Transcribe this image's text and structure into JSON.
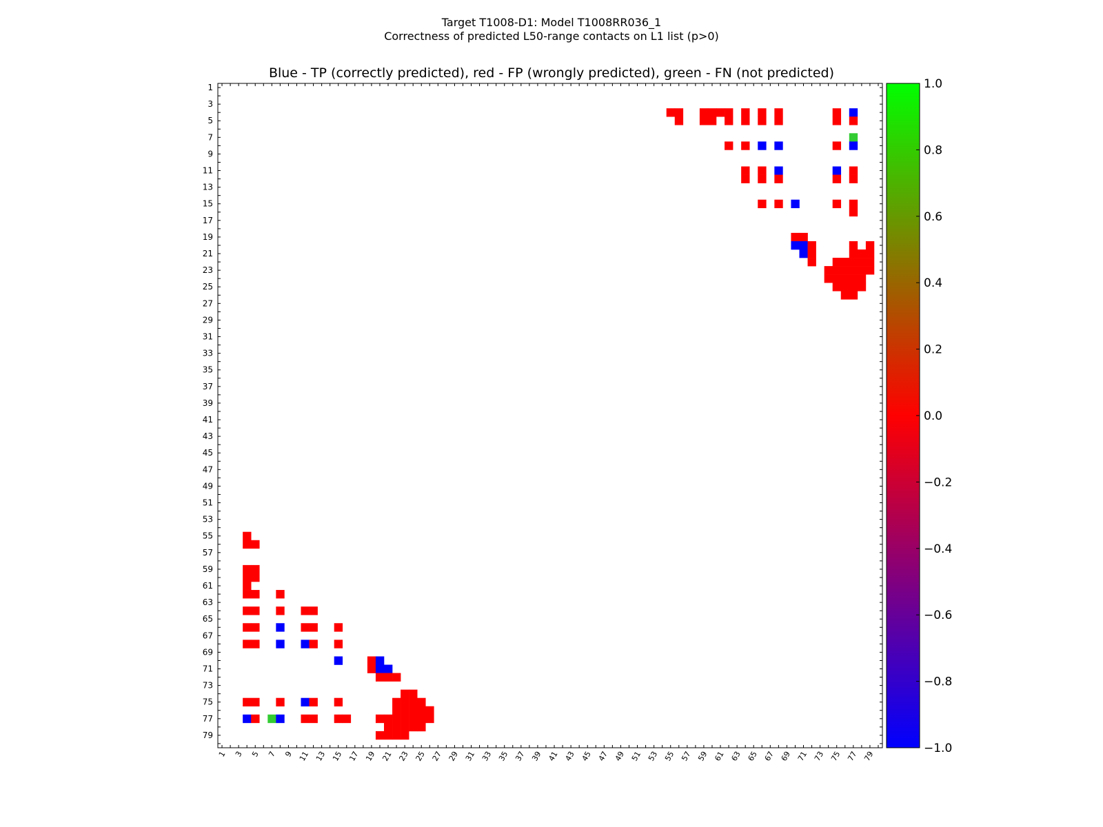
{
  "chart_data": {
    "type": "heatmap",
    "suptitle_line1": "Target T1008-D1: Model T1008RR036_1",
    "suptitle_line2": "Correctness of predicted L50-range contacts on L1 list (p>0)",
    "title": "Blue - TP (correctly predicted), red - FP (wrongly predicted), green - FN (not predicted)",
    "matrix_size": 80,
    "x_tick_labels": [
      "1",
      "3",
      "5",
      "7",
      "9",
      "11",
      "13",
      "15",
      "17",
      "19",
      "21",
      "23",
      "25",
      "27",
      "29",
      "31",
      "33",
      "35",
      "37",
      "39",
      "41",
      "43",
      "45",
      "47",
      "49",
      "51",
      "53",
      "55",
      "57",
      "59",
      "61",
      "63",
      "65",
      "67",
      "69",
      "71",
      "73",
      "75",
      "77",
      "79"
    ],
    "y_tick_labels": [
      "1",
      "3",
      "5",
      "7",
      "9",
      "11",
      "13",
      "15",
      "17",
      "19",
      "21",
      "23",
      "25",
      "27",
      "29",
      "31",
      "33",
      "35",
      "37",
      "39",
      "41",
      "43",
      "45",
      "47",
      "49",
      "51",
      "53",
      "55",
      "57",
      "59",
      "61",
      "63",
      "65",
      "67",
      "69",
      "71",
      "73",
      "75",
      "77",
      "79"
    ],
    "colorbar": {
      "min": -1.0,
      "max": 1.0,
      "tick_labels": [
        "1.0",
        "0.8",
        "0.6",
        "0.4",
        "0.2",
        "0.0",
        "−0.2",
        "−0.4",
        "−0.6",
        "−0.8",
        "−1.0"
      ],
      "stops": [
        "#0000ff",
        "#ff0000",
        "#00ff00"
      ]
    },
    "colors": {
      "TP": "#0000ff",
      "FP": "#ff0000",
      "FN": "#33cc33"
    },
    "cells_upper": [
      [
        4,
        55,
        "FP"
      ],
      [
        4,
        56,
        "FP"
      ],
      [
        5,
        56,
        "FP"
      ],
      [
        4,
        59,
        "FP"
      ],
      [
        4,
        60,
        "FP"
      ],
      [
        4,
        61,
        "FP"
      ],
      [
        4,
        62,
        "FP"
      ],
      [
        5,
        59,
        "FP"
      ],
      [
        5,
        60,
        "FP"
      ],
      [
        5,
        62,
        "FP"
      ],
      [
        4,
        64,
        "FP"
      ],
      [
        5,
        64,
        "FP"
      ],
      [
        4,
        66,
        "FP"
      ],
      [
        5,
        66,
        "FP"
      ],
      [
        4,
        68,
        "FP"
      ],
      [
        5,
        68,
        "FP"
      ],
      [
        4,
        75,
        "FP"
      ],
      [
        5,
        75,
        "FP"
      ],
      [
        4,
        77,
        "TP"
      ],
      [
        5,
        77,
        "FP"
      ],
      [
        7,
        77,
        "FN"
      ],
      [
        8,
        62,
        "FP"
      ],
      [
        8,
        64,
        "FP"
      ],
      [
        8,
        66,
        "TP"
      ],
      [
        8,
        68,
        "TP"
      ],
      [
        8,
        75,
        "FP"
      ],
      [
        8,
        77,
        "TP"
      ],
      [
        11,
        64,
        "FP"
      ],
      [
        12,
        64,
        "FP"
      ],
      [
        11,
        66,
        "FP"
      ],
      [
        12,
        66,
        "FP"
      ],
      [
        11,
        68,
        "TP"
      ],
      [
        12,
        68,
        "FP"
      ],
      [
        11,
        75,
        "TP"
      ],
      [
        12,
        75,
        "FP"
      ],
      [
        11,
        77,
        "FP"
      ],
      [
        12,
        77,
        "FP"
      ],
      [
        15,
        66,
        "FP"
      ],
      [
        15,
        68,
        "FP"
      ],
      [
        15,
        70,
        "TP"
      ],
      [
        15,
        75,
        "FP"
      ],
      [
        15,
        77,
        "FP"
      ],
      [
        16,
        77,
        "FP"
      ],
      [
        19,
        70,
        "FP"
      ],
      [
        19,
        71,
        "FP"
      ],
      [
        20,
        70,
        "TP"
      ],
      [
        20,
        71,
        "TP"
      ],
      [
        20,
        72,
        "FP"
      ],
      [
        21,
        71,
        "TP"
      ],
      [
        21,
        72,
        "FP"
      ],
      [
        22,
        72,
        "FP"
      ],
      [
        20,
        77,
        "FP"
      ],
      [
        20,
        79,
        "FP"
      ],
      [
        21,
        77,
        "FP"
      ],
      [
        21,
        78,
        "FP"
      ],
      [
        21,
        79,
        "FP"
      ],
      [
        22,
        75,
        "FP"
      ],
      [
        22,
        76,
        "FP"
      ],
      [
        22,
        77,
        "FP"
      ],
      [
        22,
        78,
        "FP"
      ],
      [
        22,
        79,
        "FP"
      ],
      [
        23,
        74,
        "FP"
      ],
      [
        23,
        75,
        "FP"
      ],
      [
        23,
        76,
        "FP"
      ],
      [
        23,
        77,
        "FP"
      ],
      [
        23,
        78,
        "FP"
      ],
      [
        23,
        79,
        "FP"
      ],
      [
        24,
        74,
        "FP"
      ],
      [
        24,
        75,
        "FP"
      ],
      [
        24,
        76,
        "FP"
      ],
      [
        24,
        77,
        "FP"
      ],
      [
        24,
        78,
        "FP"
      ],
      [
        25,
        75,
        "FP"
      ],
      [
        25,
        76,
        "FP"
      ],
      [
        25,
        77,
        "FP"
      ],
      [
        25,
        78,
        "FP"
      ],
      [
        26,
        76,
        "FP"
      ],
      [
        26,
        77,
        "FP"
      ]
    ]
  }
}
